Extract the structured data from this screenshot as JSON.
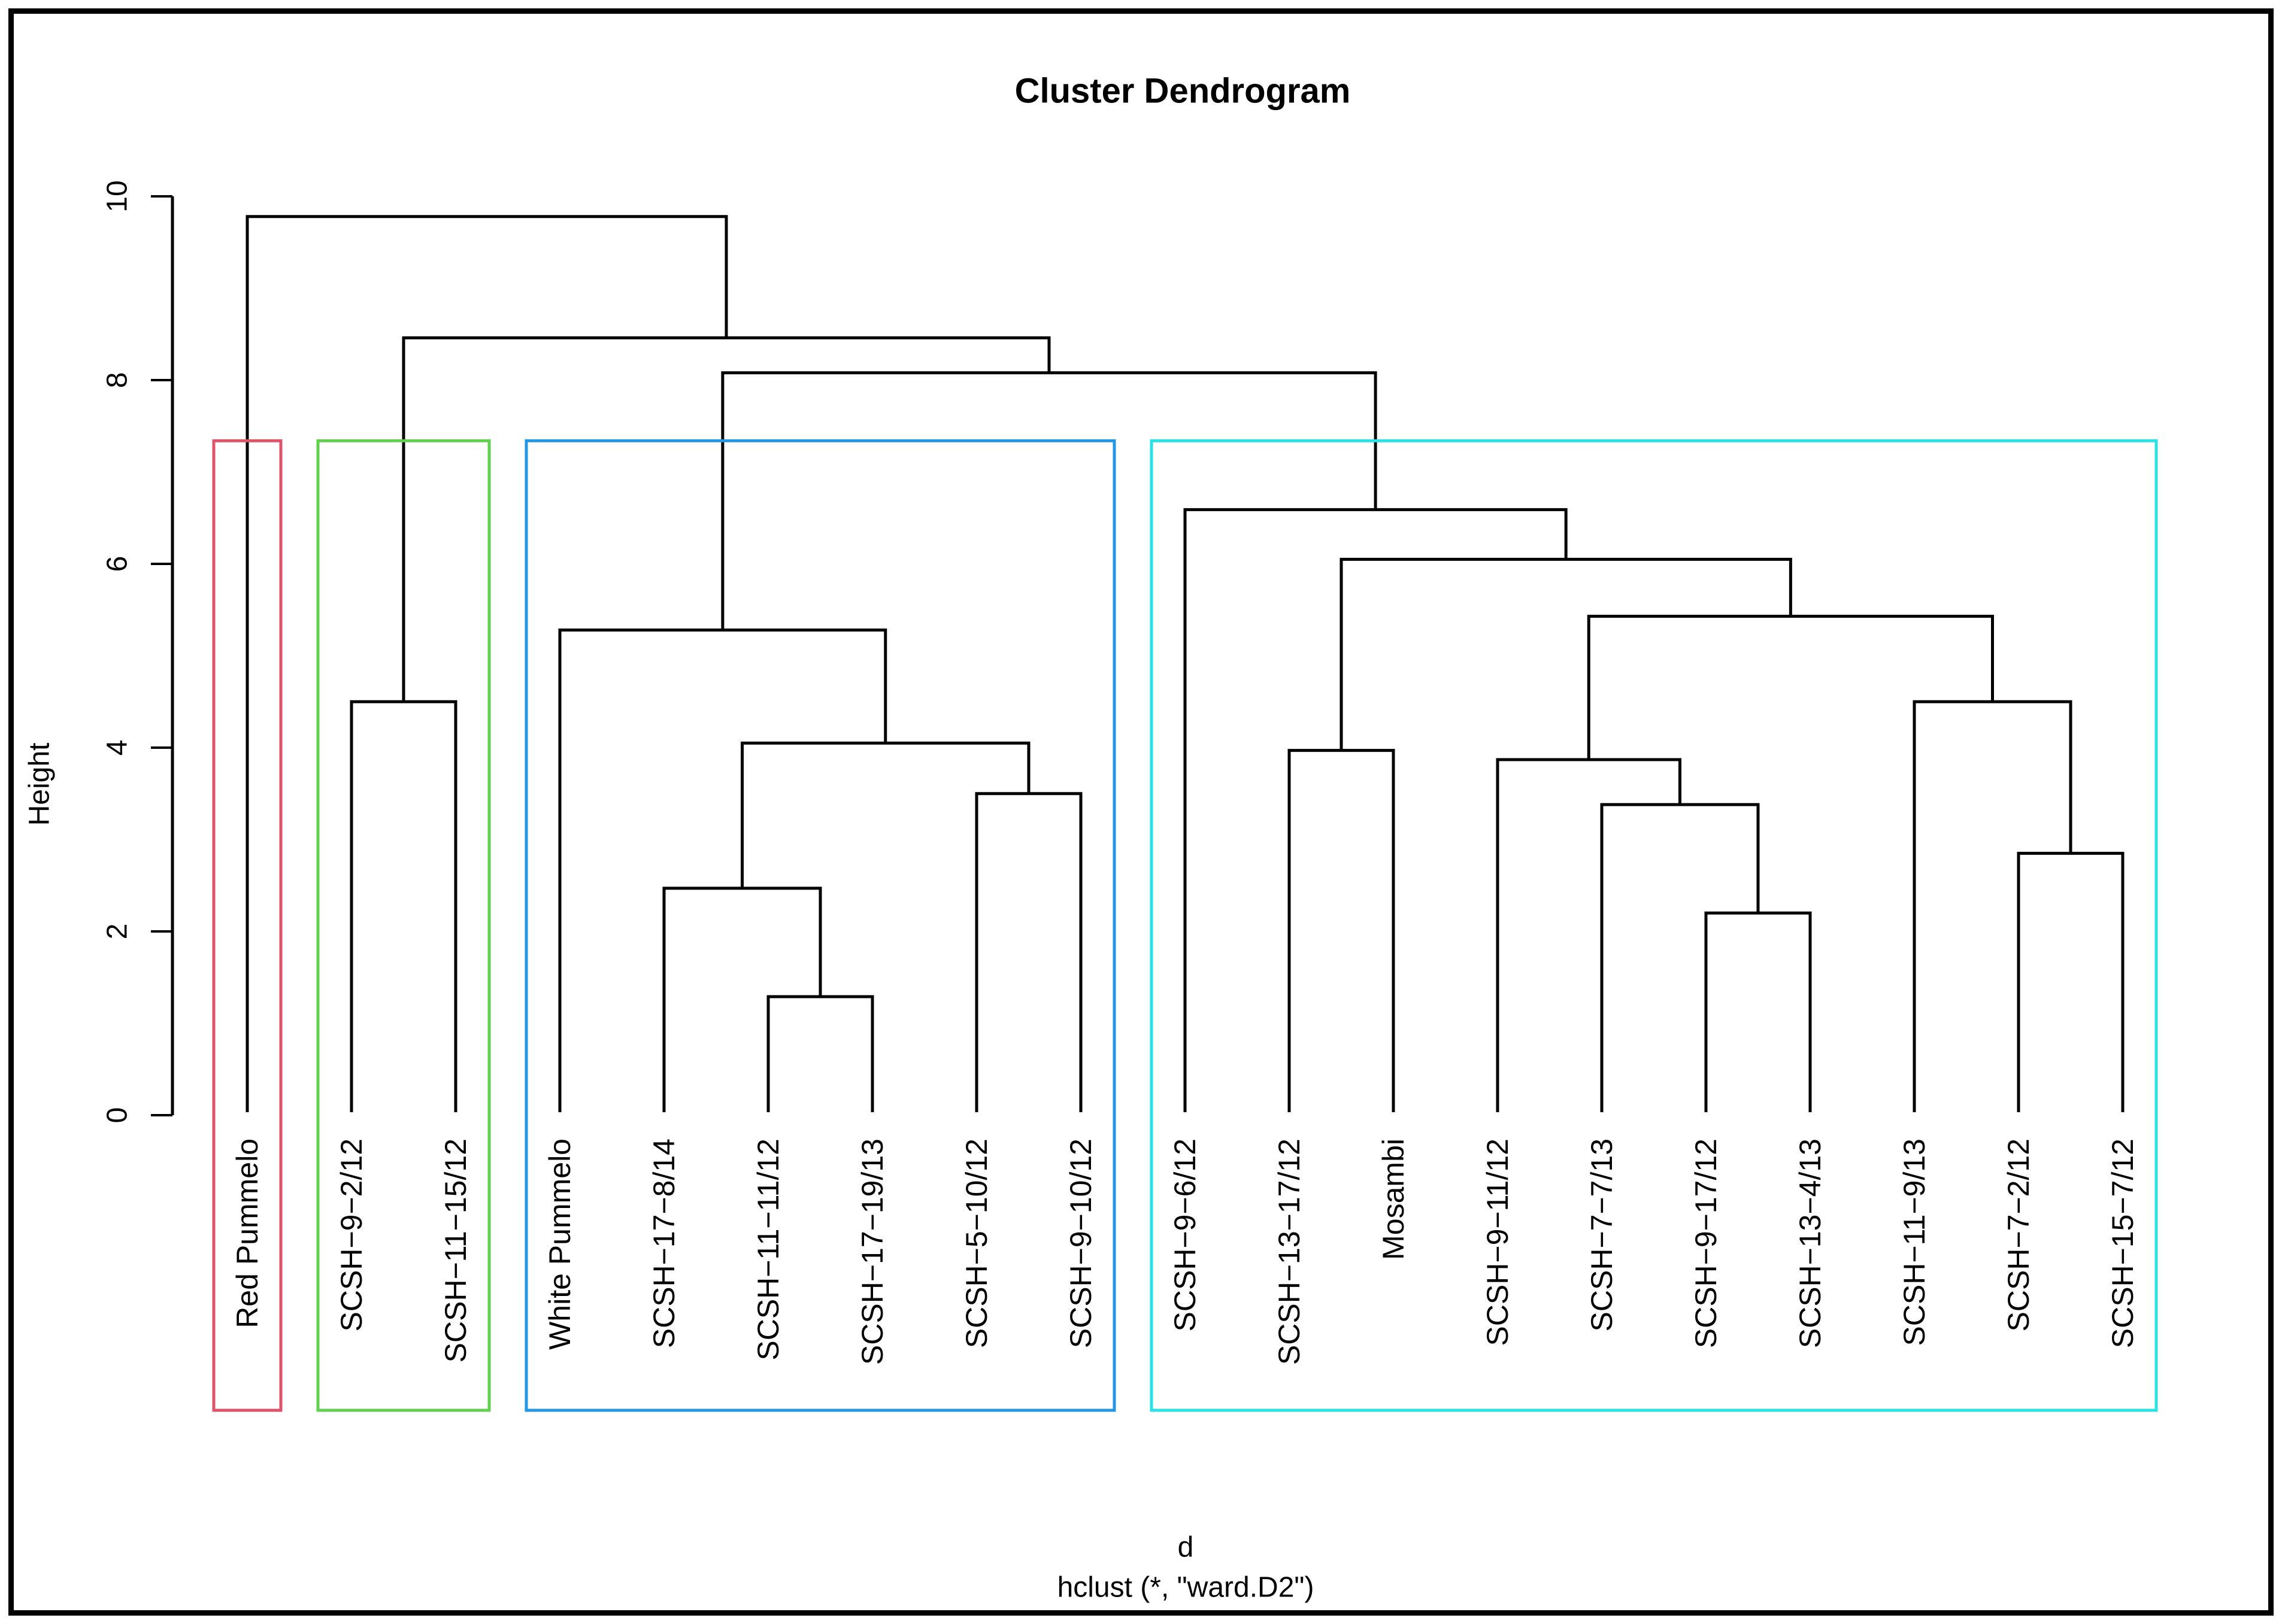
{
  "chart_data": {
    "type": "dendrogram",
    "title": "Cluster Dendrogram",
    "ylabel": "Height",
    "xlabel_line1": "d",
    "xlabel_line2": "hclust (*, \"ward.D2\")",
    "ylim": [
      0,
      10
    ],
    "y_ticks": [
      0,
      2,
      4,
      6,
      8,
      10
    ],
    "grid": false,
    "line_color": "#000000",
    "leaves": [
      "Red Pummelo",
      "SCSH−9−2/12",
      "SCSH−11−15/12",
      "White Pummelo",
      "SCSH−17−8/14",
      "SCSH−11−11/12",
      "SCSH−17−19/13",
      "SCSH−5−10/12",
      "SCSH−9−10/12",
      "SCSH−9−6/12",
      "SCSH−13−17/12",
      "Mosambi",
      "SCSH−9−11/12",
      "SCSH−7−7/13",
      "SCSH−9−17/12",
      "SCSH−13−4/13",
      "SCSH−11−9/13",
      "SCSH−7−2/12",
      "SCSH−15−7/12"
    ],
    "merges": [
      {
        "id": "M1",
        "left": "L6",
        "right": "L7",
        "height": 1.29
      },
      {
        "id": "M2",
        "left": "L5",
        "right": "M1",
        "height": 2.47
      },
      {
        "id": "M3",
        "left": "L8",
        "right": "L9",
        "height": 3.5
      },
      {
        "id": "M4",
        "left": "M2",
        "right": "M3",
        "height": 4.05
      },
      {
        "id": "M5",
        "left": "L4",
        "right": "M4",
        "height": 5.28
      },
      {
        "id": "M6",
        "left": "L2",
        "right": "L3",
        "height": 4.5
      },
      {
        "id": "M7",
        "left": "L11",
        "right": "L12",
        "height": 3.97
      },
      {
        "id": "M8",
        "left": "L15",
        "right": "L16",
        "height": 2.2
      },
      {
        "id": "M9",
        "left": "L14",
        "right": "M8",
        "height": 3.38
      },
      {
        "id": "M10",
        "left": "L13",
        "right": "M9",
        "height": 3.87
      },
      {
        "id": "M11",
        "left": "L18",
        "right": "L19",
        "height": 2.85
      },
      {
        "id": "M12",
        "left": "L17",
        "right": "M11",
        "height": 4.5
      },
      {
        "id": "M13",
        "left": "M10",
        "right": "M12",
        "height": 5.43
      },
      {
        "id": "M14",
        "left": "M7",
        "right": "M13",
        "height": 6.05
      },
      {
        "id": "M15",
        "left": "L10",
        "right": "M14",
        "height": 6.59
      },
      {
        "id": "M16",
        "left": "M5",
        "right": "M15",
        "height": 8.08
      },
      {
        "id": "M17",
        "left": "M6",
        "right": "M16",
        "height": 8.46
      },
      {
        "id": "M18",
        "left": "L1",
        "right": "M17",
        "height": 9.78
      }
    ],
    "cluster_boxes": [
      {
        "name": "cluster-1",
        "first_leaf": 1,
        "last_leaf": 1,
        "color": "#DF536B"
      },
      {
        "name": "cluster-2",
        "first_leaf": 2,
        "last_leaf": 3,
        "color": "#61D04F"
      },
      {
        "name": "cluster-3",
        "first_leaf": 4,
        "last_leaf": 9,
        "color": "#2297E6"
      },
      {
        "name": "cluster-4",
        "first_leaf": 10,
        "last_leaf": 19,
        "color": "#28E2E5"
      }
    ],
    "cluster_box_top_height": 7.34
  }
}
